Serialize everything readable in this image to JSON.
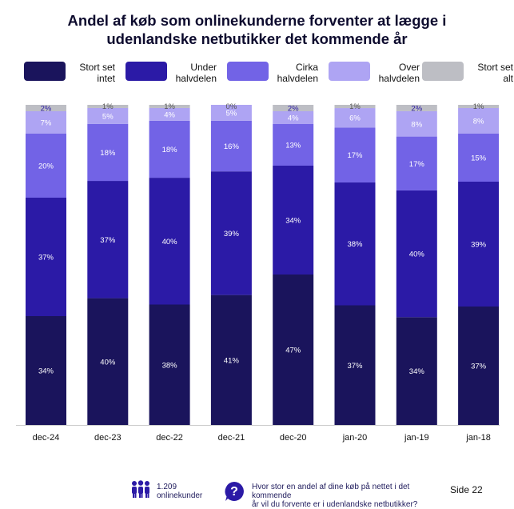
{
  "title_line1": "Andel af køb som onlinekunderne forventer at lægge i",
  "title_line2": "udenlandske netbutikker det kommende år",
  "legend": [
    {
      "label": "Stort set intet",
      "color": "#1a145c"
    },
    {
      "label": "Under halvdelen",
      "color": "#2b1aa6"
    },
    {
      "label": "Cirka halvdelen",
      "color": "#7263e6"
    },
    {
      "label": "Over halvdelen",
      "color": "#aea4f3"
    },
    {
      "label": "Stort set alt",
      "color": "#bdbec4"
    }
  ],
  "chart_data": {
    "type": "bar",
    "stacked": true,
    "normalized": true,
    "categories": [
      "dec-24",
      "dec-23",
      "dec-22",
      "dec-21",
      "dec-20",
      "jan-20",
      "jan-19",
      "jan-18"
    ],
    "series": [
      {
        "name": "Stort set intet",
        "color": "#1a145c",
        "values": [
          34,
          40,
          38,
          41,
          47,
          37,
          34,
          37
        ]
      },
      {
        "name": "Under halvdelen",
        "color": "#2b1aa6",
        "values": [
          37,
          37,
          40,
          39,
          34,
          38,
          40,
          39
        ]
      },
      {
        "name": "Cirka halvdelen",
        "color": "#7263e6",
        "values": [
          20,
          18,
          18,
          16,
          13,
          17,
          17,
          15
        ]
      },
      {
        "name": "Over halvdelen",
        "color": "#aea4f3",
        "values": [
          7,
          5,
          4,
          5,
          4,
          6,
          8,
          8
        ]
      },
      {
        "name": "Stort set alt",
        "color": "#bdbec4",
        "values": [
          2,
          1,
          1,
          0,
          2,
          1,
          2,
          1
        ]
      }
    ],
    "value_suffix": "%",
    "legend_position": "top",
    "grid": false
  },
  "footer": {
    "respondents_count": "1.209",
    "respondents_label": "onlinekunder",
    "question_line1": "Hvor stor en andel af dine køb på nettet i det kommende",
    "question_line2": "år vil du forvente er i udenlandske netbutikker?",
    "page": "Side 22"
  }
}
